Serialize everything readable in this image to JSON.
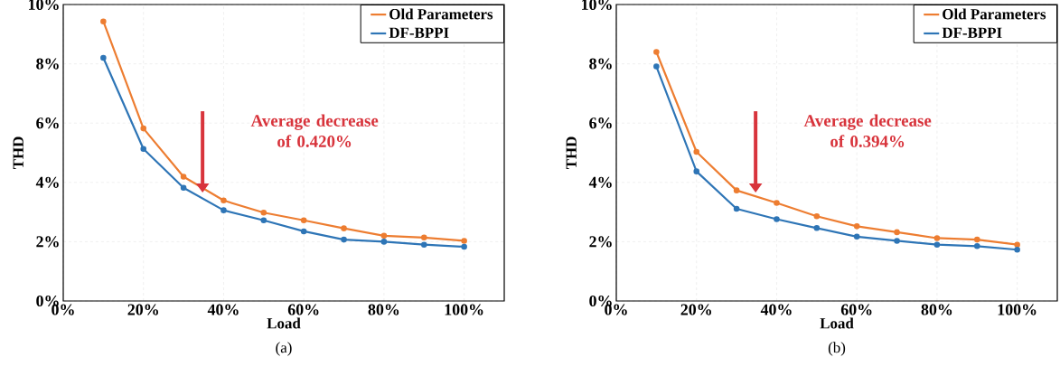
{
  "chart_data": [
    {
      "type": "line",
      "title": "(a)",
      "xlabel": "Load",
      "ylabel": "THD",
      "x": [
        10,
        20,
        30,
        40,
        50,
        60,
        70,
        80,
        90,
        100
      ],
      "series": [
        {
          "name": "Old Parameters",
          "color": "#ed7d31",
          "values": [
            9.43,
            5.82,
            4.19,
            3.39,
            2.98,
            2.72,
            2.45,
            2.2,
            2.14,
            2.03
          ]
        },
        {
          "name": "DF-BPPI",
          "color": "#2e75b6",
          "values": [
            8.2,
            5.13,
            3.82,
            3.06,
            2.72,
            2.35,
            2.07,
            2.0,
            1.9,
            1.83
          ]
        }
      ],
      "xlim": [
        0,
        110
      ],
      "ylim": [
        0,
        10
      ],
      "xticks": [
        {
          "value": 0,
          "label": "0%"
        },
        {
          "value": 20,
          "label": "20%"
        },
        {
          "value": 40,
          "label": "40%"
        },
        {
          "value": 60,
          "label": "60%"
        },
        {
          "value": 80,
          "label": "80%"
        },
        {
          "value": 100,
          "label": "100%"
        }
      ],
      "yticks": [
        {
          "value": 0,
          "label": "0%"
        },
        {
          "value": 2,
          "label": "2%"
        },
        {
          "value": 4,
          "label": "4%"
        },
        {
          "value": 6,
          "label": "6%"
        },
        {
          "value": 8,
          "label": "8%"
        },
        {
          "value": 10,
          "label": "10%"
        }
      ],
      "annotations": [
        "Average decrease of 0.420%"
      ],
      "grid": true,
      "legend": "top right",
      "marker": "circle",
      "line_style": "solid"
    },
    {
      "type": "line",
      "title": "(b)",
      "xlabel": "Load",
      "ylabel": "THD",
      "x": [
        10,
        20,
        30,
        40,
        50,
        60,
        70,
        80,
        90,
        100
      ],
      "series": [
        {
          "name": "Old Parameters",
          "color": "#ed7d31",
          "values": [
            8.4,
            5.03,
            3.73,
            3.31,
            2.86,
            2.52,
            2.32,
            2.12,
            2.07,
            1.9
          ]
        },
        {
          "name": "DF-BPPI",
          "color": "#2e75b6",
          "values": [
            7.91,
            4.37,
            3.11,
            2.76,
            2.46,
            2.17,
            2.03,
            1.9,
            1.85,
            1.73
          ]
        }
      ],
      "xlim": [
        0,
        110
      ],
      "ylim": [
        0,
        10
      ],
      "xticks": [
        {
          "value": 0,
          "label": "0%"
        },
        {
          "value": 20,
          "label": "20%"
        },
        {
          "value": 40,
          "label": "40%"
        },
        {
          "value": 60,
          "label": "60%"
        },
        {
          "value": 80,
          "label": "80%"
        },
        {
          "value": 100,
          "label": "100%"
        }
      ],
      "yticks": [
        {
          "value": 0,
          "label": "0%"
        },
        {
          "value": 2,
          "label": "2%"
        },
        {
          "value": 4,
          "label": "4%"
        },
        {
          "value": 6,
          "label": "6%"
        },
        {
          "value": 8,
          "label": "8%"
        },
        {
          "value": 10,
          "label": "10%"
        }
      ],
      "annotations": [
        "Average decrease of 0.394%"
      ],
      "grid": true,
      "legend": "top right",
      "marker": "circle",
      "line_style": "solid"
    }
  ]
}
